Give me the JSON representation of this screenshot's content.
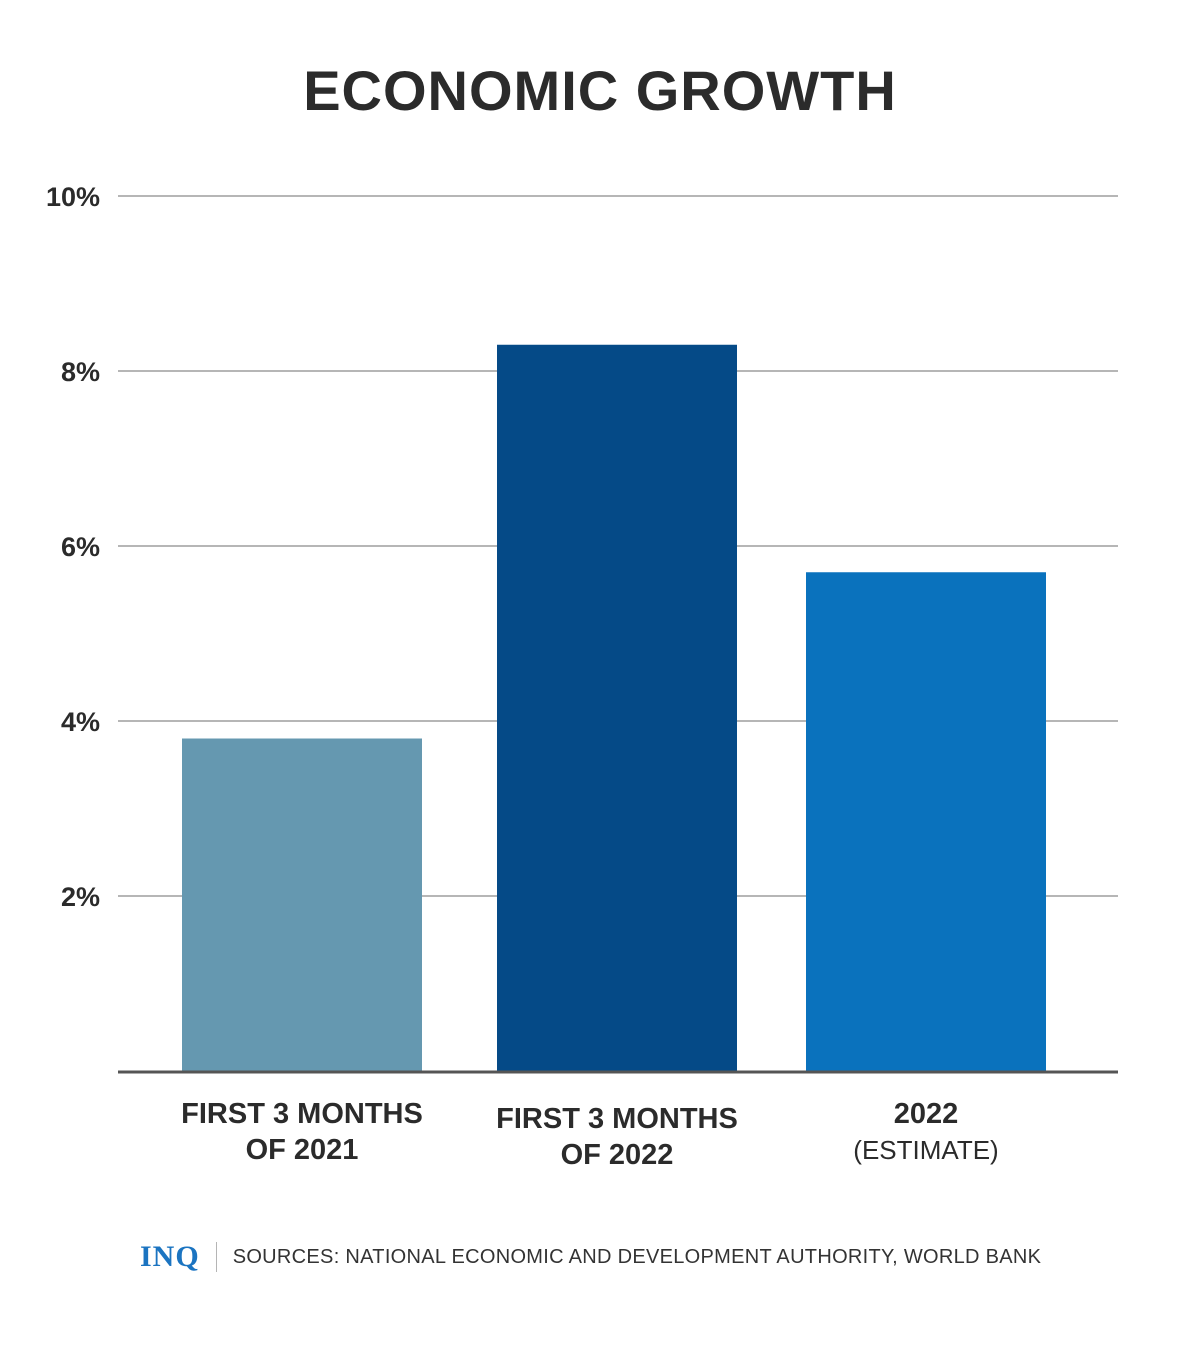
{
  "title": "ECONOMIC GROWTH",
  "chart_data": {
    "type": "bar",
    "title": "ECONOMIC GROWTH",
    "xlabel": "",
    "ylabel": "",
    "ylim": [
      0,
      10
    ],
    "yticks": [
      {
        "value": 2,
        "label": "2%"
      },
      {
        "value": 4,
        "label": "4%"
      },
      {
        "value": 6,
        "label": "6%"
      },
      {
        "value": 8,
        "label": "8%"
      },
      {
        "value": 10,
        "label": "10%"
      }
    ],
    "grid": true,
    "categories": [
      {
        "line1": "FIRST 3 MONTHS",
        "line2": "OF 2021",
        "sub": ""
      },
      {
        "line1": "FIRST 3 MONTHS",
        "line2": "OF 2022",
        "sub": ""
      },
      {
        "line1": "2022",
        "line2": "",
        "sub": "(ESTIMATE)"
      }
    ],
    "values": [
      3.8,
      8.3,
      5.7
    ],
    "colors": [
      "#6598b0",
      "#054a87",
      "#0a72bd"
    ]
  },
  "footer": {
    "logo": "INQ",
    "sources": "SOURCES: NATIONAL ECONOMIC AND DEVELOPMENT AUTHORITY, WORLD BANK"
  },
  "colors": {
    "grid": "#8a8a8a",
    "baseline": "#555555",
    "text": "#2b2b2b",
    "logo": "#1b74c1"
  }
}
